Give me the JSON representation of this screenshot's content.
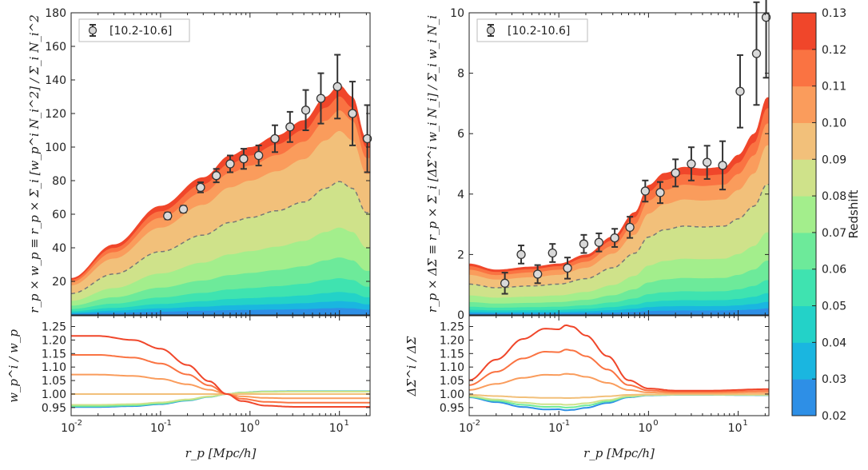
{
  "chart_data": [
    {
      "type": "area",
      "panel": "top-left",
      "title": "",
      "xscale": "log",
      "xlim": [
        0.01,
        22
      ],
      "ylim": [
        0,
        180
      ],
      "yticks": [
        20,
        40,
        60,
        80,
        100,
        120,
        140,
        160,
        180
      ],
      "ylabel": "r_p × w_p  ≡  r_p × Σ_i [w_p^i N_i^2] / Σ_i N_i^2",
      "legend": {
        "label": "[10.2-10.6]",
        "location": "top-left"
      },
      "dashed_series_redshift": 0.09,
      "band_curve_x": [
        0.01,
        0.03,
        0.1,
        0.3,
        0.6,
        1,
        2,
        4,
        7,
        10,
        14,
        20
      ],
      "band_curve_top": [
        22,
        42,
        65,
        82,
        95,
        100,
        107,
        116,
        130,
        137,
        130,
        105
      ],
      "band_fractions": [
        0.03,
        0.06,
        0.1,
        0.16,
        0.25,
        0.38,
        0.58,
        0.8,
        0.89,
        0.95,
        1.0
      ],
      "points": {
        "x": [
          0.12,
          0.18,
          0.28,
          0.42,
          0.6,
          0.85,
          1.25,
          1.9,
          2.8,
          4.2,
          6.2,
          9.5,
          14,
          20.5
        ],
        "y": [
          59,
          63,
          76,
          83,
          90,
          93,
          95,
          105,
          112,
          122,
          129,
          136,
          120,
          105
        ],
        "err": [
          2,
          2,
          3,
          4,
          5,
          6,
          6,
          8,
          9,
          12,
          15,
          19,
          19,
          20
        ]
      }
    },
    {
      "type": "line",
      "panel": "bottom-left",
      "xscale": "log",
      "xlim": [
        0.01,
        22
      ],
      "ylim": [
        0.92,
        1.29
      ],
      "yticks": [
        0.95,
        1.0,
        1.05,
        1.1,
        1.15,
        1.2,
        1.25
      ],
      "ytick_labels": [
        "0.95",
        "1.00",
        "1.05",
        "1.10",
        "1.15",
        "1.20",
        "1.25"
      ],
      "ylabel": "w_p^i / w_p",
      "xlabel": "r_p   [Mpc/h]",
      "xtick_labels": [
        "10",
        "10",
        "10",
        "10"
      ],
      "xtick_exponents": [
        "-2",
        "-1",
        "0",
        "1"
      ],
      "x": [
        0.01,
        0.02,
        0.05,
        0.1,
        0.2,
        0.35,
        0.55,
        0.8,
        1.5,
        3,
        10,
        20
      ],
      "shape": [
        1.0,
        1.0,
        0.93,
        0.78,
        0.5,
        0.22,
        0.0,
        -0.12,
        -0.2,
        -0.22,
        -0.22,
        -0.22
      ],
      "series": [
        {
          "redshift": 0.13,
          "amp": 0.215
        },
        {
          "redshift": 0.12,
          "amp": 0.145
        },
        {
          "redshift": 0.11,
          "amp": 0.072
        },
        {
          "redshift": 0.1,
          "amp": 0.0
        },
        {
          "redshift": 0.09,
          "amp": -0.04
        },
        {
          "redshift": 0.07,
          "amp": -0.045
        },
        {
          "redshift": 0.03,
          "amp": -0.048
        }
      ]
    },
    {
      "type": "area",
      "panel": "top-right",
      "xscale": "log",
      "xlim": [
        0.01,
        22
      ],
      "ylim": [
        0,
        10
      ],
      "yticks": [
        0,
        2,
        4,
        6,
        8,
        10
      ],
      "ylabel": "r_p × ΔΣ  ≡  r_p × Σ_i [ΔΣ^i w_i N_i] / Σ_i w_i N_i",
      "legend": {
        "label": "[10.2-10.6]",
        "location": "top-left"
      },
      "dashed_series_redshift": 0.09,
      "band_curve_x": [
        0.01,
        0.02,
        0.05,
        0.1,
        0.2,
        0.4,
        0.7,
        1,
        1.5,
        2.5,
        4,
        7,
        10,
        15,
        21
      ],
      "band_curve_top": [
        1.7,
        1.5,
        1.6,
        1.7,
        2.0,
        2.6,
        3.4,
        4.3,
        4.7,
        4.9,
        4.85,
        4.9,
        5.3,
        6.0,
        7.2
      ],
      "band_fractions": [
        0.03,
        0.06,
        0.1,
        0.16,
        0.25,
        0.38,
        0.6,
        0.78,
        0.88,
        0.95,
        1.0
      ],
      "points": {
        "x": [
          0.025,
          0.038,
          0.058,
          0.085,
          0.125,
          0.19,
          0.28,
          0.42,
          0.62,
          0.92,
          1.35,
          2.0,
          3.0,
          4.5,
          6.7,
          10.5,
          16,
          20.5
        ],
        "y": [
          1.05,
          2.0,
          1.35,
          2.05,
          1.55,
          2.35,
          2.4,
          2.55,
          2.9,
          4.1,
          4.05,
          4.7,
          5.0,
          5.05,
          4.95,
          7.4,
          8.65,
          9.85
        ],
        "err": [
          0.35,
          0.3,
          0.3,
          0.3,
          0.35,
          0.3,
          0.3,
          0.3,
          0.35,
          0.35,
          0.35,
          0.45,
          0.55,
          0.55,
          0.8,
          1.2,
          1.7,
          2.0
        ]
      }
    },
    {
      "type": "line",
      "panel": "bottom-right",
      "xscale": "log",
      "xlim": [
        0.01,
        22
      ],
      "ylim": [
        0.92,
        1.29
      ],
      "yticks": [
        0.95,
        1.0,
        1.05,
        1.1,
        1.15,
        1.2,
        1.25
      ],
      "ytick_labels": [
        "0.95",
        "1.00",
        "1.05",
        "1.10",
        "1.15",
        "1.20",
        "1.25"
      ],
      "ylabel": "ΔΣ^i / ΔΣ",
      "xlabel": "r_p   [Mpc/h]",
      "xtick_labels": [
        "10",
        "10",
        "10",
        "10"
      ],
      "xtick_exponents": [
        "-2",
        "-1",
        "0",
        "1"
      ],
      "x": [
        0.01,
        0.02,
        0.04,
        0.07,
        0.1,
        0.12,
        0.14,
        0.2,
        0.35,
        0.6,
        1,
        2,
        5,
        20
      ],
      "shape": [
        0.2,
        0.5,
        0.8,
        0.95,
        0.94,
        1.0,
        0.98,
        0.85,
        0.55,
        0.2,
        0.08,
        0.05,
        0.05,
        0.07
      ],
      "series": [
        {
          "redshift": 0.13,
          "amp": 0.255
        },
        {
          "redshift": 0.12,
          "amp": 0.165
        },
        {
          "redshift": 0.11,
          "amp": 0.075
        },
        {
          "redshift": 0.1,
          "amp": -0.015
        },
        {
          "redshift": 0.09,
          "amp": -0.04
        },
        {
          "redshift": 0.07,
          "amp": -0.05
        },
        {
          "redshift": 0.03,
          "amp": -0.06
        }
      ]
    },
    {
      "type": "colorbar",
      "label": "Redshift",
      "ticks": [
        "0.02",
        "0.03",
        "0.04",
        "0.05",
        "0.06",
        "0.07",
        "0.08",
        "0.09",
        "0.10",
        "0.11",
        "0.12",
        "0.13"
      ],
      "colors": [
        "#4A63E8",
        "#2E8FE6",
        "#1AB6E0",
        "#23D2C8",
        "#3FE3B0",
        "#6DEA9A",
        "#A3EE8C",
        "#CFE28A",
        "#F2C07A",
        "#FA9C5C",
        "#FA7342",
        "#F0462A"
      ]
    }
  ]
}
